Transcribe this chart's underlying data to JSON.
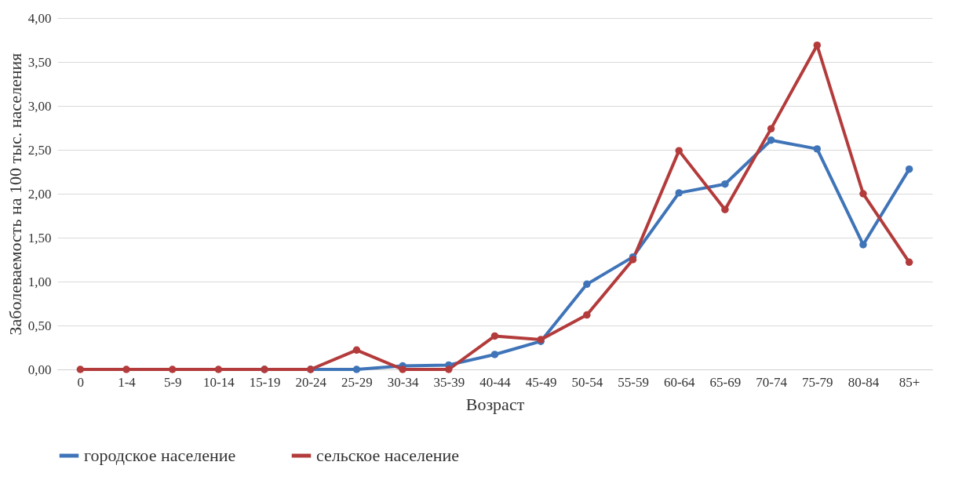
{
  "chart_data": {
    "type": "line",
    "xlabel": "Возраст",
    "ylabel": "Заболеваемость на 100 тыс. населения",
    "categories": [
      "0",
      "1-4",
      "5-9",
      "10-14",
      "15-19",
      "20-24",
      "25-29",
      "30-34",
      "35-39",
      "40-44",
      "45-49",
      "50-54",
      "55-59",
      "60-64",
      "65-69",
      "70-74",
      "75-79",
      "80-84",
      "85+"
    ],
    "series": [
      {
        "name": "городское население",
        "color": "#3f74b8",
        "values": [
          null,
          null,
          null,
          null,
          0,
          0,
          0,
          0.04,
          0.05,
          0.17,
          0.32,
          0.97,
          1.28,
          2.01,
          2.11,
          2.61,
          2.51,
          1.42,
          2.28
        ]
      },
      {
        "name": "сельское население",
        "color": "#b33b3b",
        "values": [
          0,
          0,
          0,
          0,
          0,
          0,
          0.22,
          0,
          0,
          0.38,
          0.34,
          0.62,
          1.25,
          2.49,
          1.82,
          2.74,
          3.69,
          2.0,
          1.22
        ]
      }
    ],
    "ylim": [
      0,
      4
    ],
    "yticks": [
      {
        "value": 0,
        "label": "0,00"
      },
      {
        "value": 0.5,
        "label": "0,50"
      },
      {
        "value": 1,
        "label": "1,00"
      },
      {
        "value": 1.5,
        "label": "1,50"
      },
      {
        "value": 2,
        "label": "2,00"
      },
      {
        "value": 2.5,
        "label": "2,50"
      },
      {
        "value": 3,
        "label": "3,00"
      },
      {
        "value": 3.5,
        "label": "3,50"
      },
      {
        "value": 4,
        "label": "4,00"
      }
    ],
    "grid": "y",
    "legend": "bottom",
    "marker": "circle",
    "line_style": "solid"
  }
}
